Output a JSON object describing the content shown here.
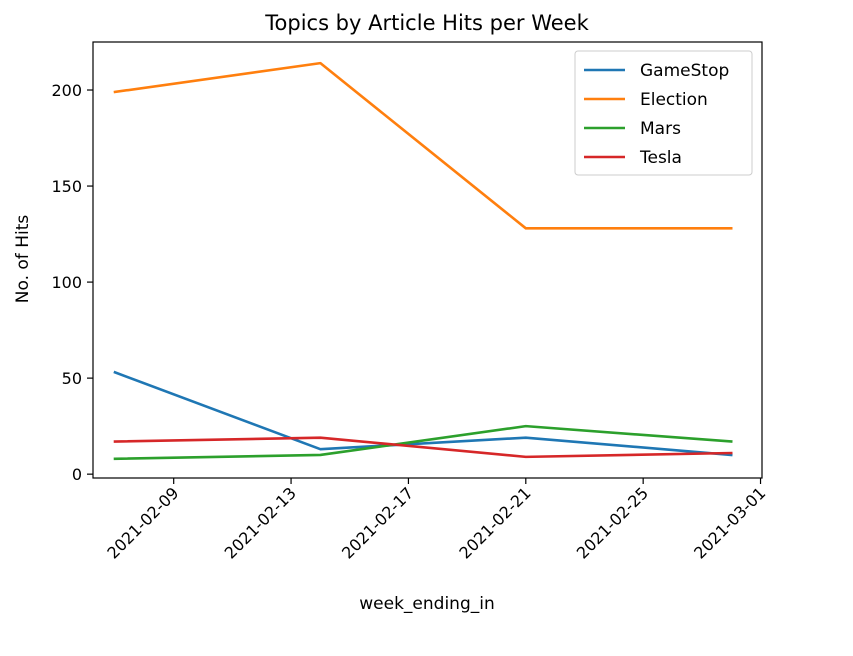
{
  "chart_data": {
    "type": "line",
    "title": "Topics by Article Hits per Week",
    "xlabel": "week_ending_in",
    "ylabel": "No. of Hits",
    "xlim": [
      "2021-02-06",
      "2021-03-01"
    ],
    "ylim": [
      -2,
      225
    ],
    "xticks": [
      {
        "date": "2021-02-09",
        "label": "2021-02-09"
      },
      {
        "date": "2021-02-13",
        "label": "2021-02-13"
      },
      {
        "date": "2021-02-17",
        "label": "2021-02-17"
      },
      {
        "date": "2021-02-21",
        "label": "2021-02-21"
      },
      {
        "date": "2021-02-25",
        "label": "2021-02-25"
      },
      {
        "date": "2021-03-01",
        "label": "2021-03-01"
      }
    ],
    "yticks": [
      {
        "value": 0,
        "label": "0"
      },
      {
        "value": 50,
        "label": "50"
      },
      {
        "value": 100,
        "label": "100"
      },
      {
        "value": 150,
        "label": "150"
      },
      {
        "value": 200,
        "label": "200"
      }
    ],
    "x": [
      "2021-02-07",
      "2021-02-14",
      "2021-02-21",
      "2021-02-28"
    ],
    "series": [
      {
        "name": "GameStop",
        "color": "#1f77b4",
        "values": [
          53,
          13,
          19,
          10
        ]
      },
      {
        "name": "Election",
        "color": "#ff7f0e",
        "values": [
          199,
          214,
          128,
          128
        ]
      },
      {
        "name": "Mars",
        "color": "#2ca02c",
        "values": [
          8,
          10,
          25,
          17
        ]
      },
      {
        "name": "Tesla",
        "color": "#d62728",
        "values": [
          17,
          19,
          9,
          11
        ]
      }
    ],
    "legend_position": "top-right",
    "grid": false
  }
}
